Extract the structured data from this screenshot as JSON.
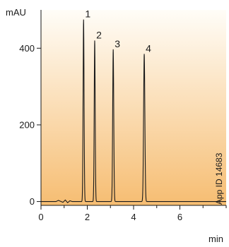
{
  "chart_data": {
    "type": "line",
    "title": "",
    "xlabel": "min",
    "ylabel": "mAU",
    "xlim": [
      0,
      8
    ],
    "ylim": [
      -10,
      500
    ],
    "x_ticks": [
      0,
      2,
      4,
      6
    ],
    "y_ticks": [
      0,
      200,
      400
    ],
    "grid": false,
    "background": "vertical gradient, white at top to light orange at bottom",
    "colors": {
      "line": "#1a1a1a",
      "gradient_top": "#fffdf8",
      "gradient_bottom": "#f6bd72"
    },
    "peaks": [
      {
        "label": "1",
        "x": 1.84,
        "y": 475,
        "width": 0.05
      },
      {
        "label": "2",
        "x": 2.32,
        "y": 420,
        "width": 0.05
      },
      {
        "label": "3",
        "x": 3.12,
        "y": 397,
        "width": 0.055
      },
      {
        "label": "4",
        "x": 4.46,
        "y": 385,
        "width": 0.065
      }
    ],
    "baseline_noise": [
      {
        "x": 0.75,
        "y": 3
      },
      {
        "x": 0.95,
        "y": -2
      },
      {
        "x": 1.05,
        "y": 4
      },
      {
        "x": 1.15,
        "y": -3
      },
      {
        "x": 1.25,
        "y": 2
      }
    ],
    "annotation": "App ID 14683"
  }
}
